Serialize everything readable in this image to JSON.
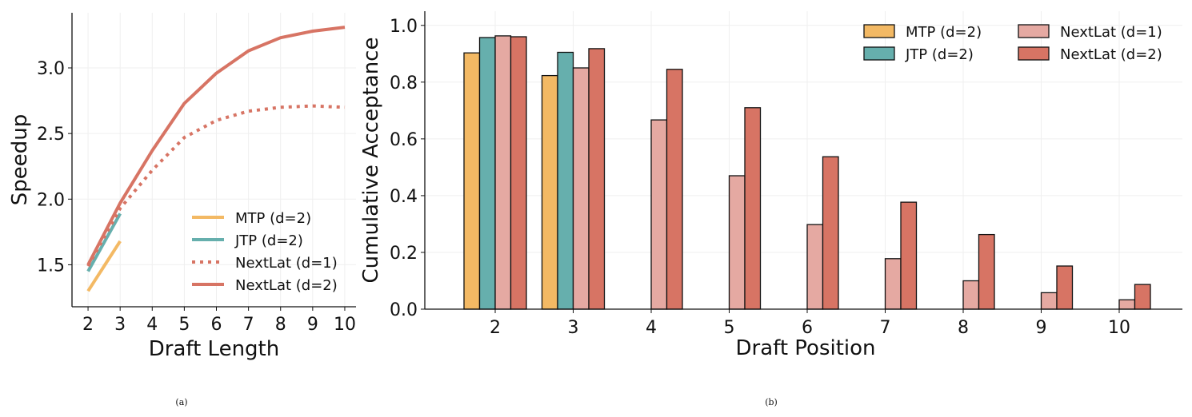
{
  "chart_data": [
    {
      "type": "line",
      "caption": "(a)",
      "xlabel": "Draft Length",
      "ylabel": "Speedup",
      "xlim": [
        1.5,
        10.35
      ],
      "ylim": [
        1.18,
        3.42
      ],
      "xticks": [
        "2",
        "3",
        "4",
        "5",
        "6",
        "7",
        "8",
        "9",
        "10"
      ],
      "yticks": [
        "1.5",
        "2.0",
        "2.5",
        "3.0"
      ],
      "grid": true,
      "legend_position": "lower-right",
      "series": [
        {
          "name": "MTP (d=2)",
          "color": "#f3b964",
          "style": "solid",
          "x": [
            2,
            3
          ],
          "y": [
            1.3,
            1.68
          ]
        },
        {
          "name": "JTP (d=2)",
          "color": "#66afad",
          "style": "solid",
          "x": [
            2,
            3
          ],
          "y": [
            1.45,
            1.89
          ]
        },
        {
          "name": "NextLat (d=1)",
          "color": "#d77464",
          "style": "dotted",
          "x": [
            2,
            3,
            4,
            5,
            6,
            7,
            8,
            9,
            10
          ],
          "y": [
            1.49,
            1.93,
            2.22,
            2.47,
            2.6,
            2.67,
            2.7,
            2.71,
            2.7
          ]
        },
        {
          "name": "NextLat (d=2)",
          "color": "#d77464",
          "style": "solid",
          "x": [
            2,
            3,
            4,
            5,
            6,
            7,
            8,
            9,
            10
          ],
          "y": [
            1.5,
            1.97,
            2.37,
            2.73,
            2.96,
            3.13,
            3.23,
            3.28,
            3.31
          ]
        }
      ]
    },
    {
      "type": "bar",
      "caption": "(b)",
      "xlabel": "Draft Position",
      "ylabel": "Cumulative Acceptance",
      "categories": [
        "2",
        "3",
        "4",
        "5",
        "6",
        "7",
        "8",
        "9",
        "10"
      ],
      "ylim": [
        0,
        1.05
      ],
      "yticks": [
        "0.0",
        "0.2",
        "0.4",
        "0.6",
        "0.8",
        "1.0"
      ],
      "grid": true,
      "legend_position": "top-right",
      "series": [
        {
          "name": "MTP (d=2)",
          "color": "#f3b964",
          "values": [
            0.903,
            0.823,
            null,
            null,
            null,
            null,
            null,
            null,
            null
          ]
        },
        {
          "name": "JTP (d=2)",
          "color": "#66afad",
          "values": [
            0.957,
            0.905,
            null,
            null,
            null,
            null,
            null,
            null,
            null
          ]
        },
        {
          "name": "NextLat (d=1)",
          "color": "#e5a9a2",
          "values": [
            0.963,
            0.85,
            0.667,
            0.47,
            0.298,
            0.178,
            0.1,
            0.058,
            0.033
          ]
        },
        {
          "name": "NextLat (d=2)",
          "color": "#d77464",
          "values": [
            0.96,
            0.918,
            0.845,
            0.71,
            0.537,
            0.377,
            0.263,
            0.152,
            0.087
          ]
        }
      ]
    }
  ]
}
